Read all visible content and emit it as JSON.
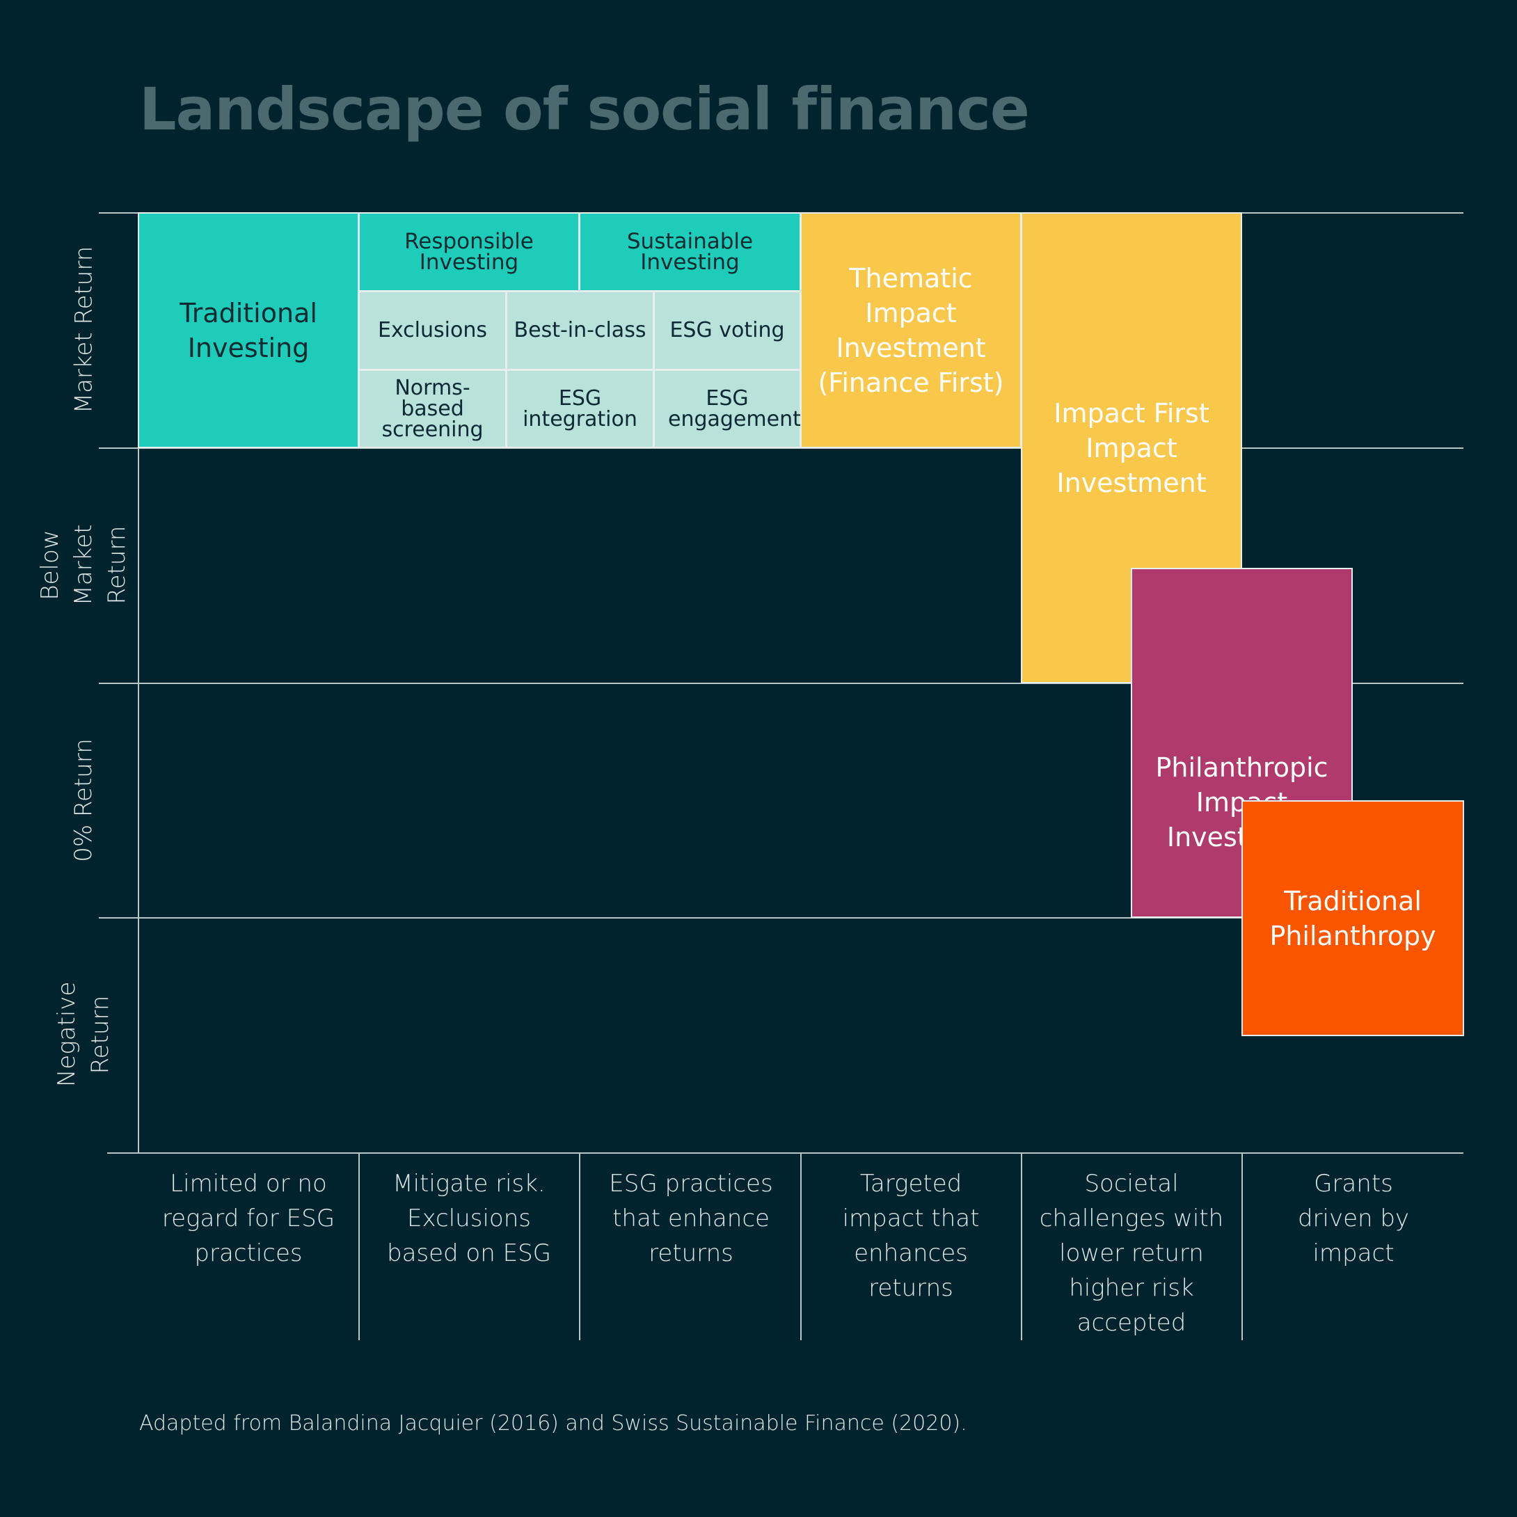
{
  "title": "Landscape of social finance",
  "y_axis": {
    "labels": [
      "Market Return",
      "Below Market Return",
      "0% Return",
      "Negative Return"
    ]
  },
  "x_axis": {
    "labels": [
      "Limited or no regard for ESG practices",
      "Mitigate risk. Exclusions based on ESG",
      "ESG practices that enhance returns",
      "Targeted impact that enhances returns",
      "Societal challenges with lower return higher risk accepted",
      "Grants driven by impact"
    ]
  },
  "blocks": {
    "traditional_investing": "Traditional Investing",
    "responsible_investing": "Responsible Investing",
    "sustainable_investing": "Sustainable Investing",
    "exclusions": "Exclusions",
    "best_in_class": "Best-in-class",
    "esg_voting": "ESG voting",
    "norms_based_screening": "Norms-based screening",
    "esg_integration": "ESG integration",
    "esg_engagement": "ESG engagement",
    "thematic_impact": "Thematic Impact Investment (Finance First)",
    "impact_first": "Impact First Impact Investment",
    "philanthropic_impact": "Philanthropic Impact Investment",
    "traditional_philanthropy": "Traditional Philanthropy"
  },
  "colors": {
    "background": "#01232e",
    "teal": "#1ecdb9",
    "pale_teal": "#b8e2da",
    "gold": "#f9c84a",
    "plum": "#b13a6c",
    "orange": "#fb5500"
  },
  "source": "Adapted from Balandina Jacquier (2016) and Swiss Sustainable Finance (2020)."
}
